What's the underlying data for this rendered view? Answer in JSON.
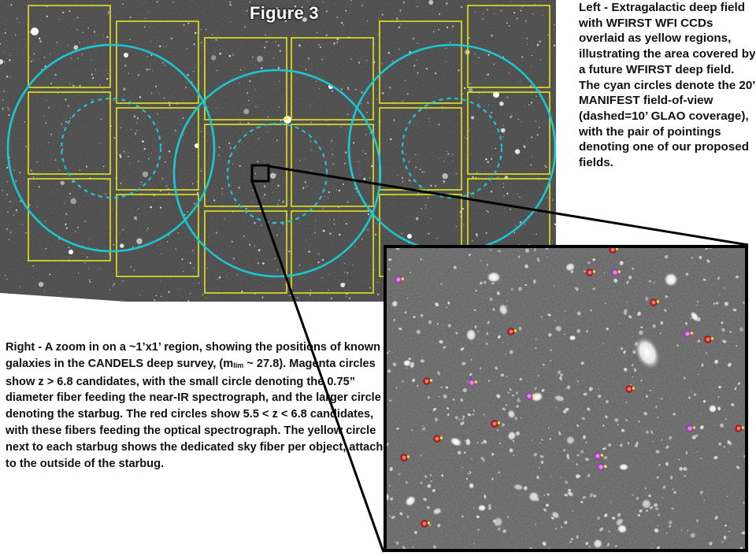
{
  "figure": {
    "title": "Figure 3"
  },
  "caption_left": "Left - Extragalactic deep field with WFIRST WFI CCDs overlaid as yellow regions, illustrating the area covered by a future WFIRST deep field.  The cyan circles denote the 20’ MANIFEST field-of-view (dashed=10’ GLAO coverage), with the pair of pointings denoting one of our proposed fields.",
  "caption_right": {
    "part1": "Right - A zoom in on a ~1’x1’ region, showing the positions of known galaxies in the CANDELS deep survey, (m",
    "sub": "lim",
    "part2": " ~ 27.8).  Magenta circles show z > 6.8 candidates, with the small circle denoting the 0.75” diameter fiber feeding the near-IR spectrograph, and the larger circle denoting the starbug.  The red circles show 5.5 < z < 6.8 candidates, with these fibers feeding the optical spectrograph. The yellow circle next to each starbug shows the dedicated sky fiber per object, attached to the outside of the starbug."
  },
  "colors": {
    "ccd": "#e6e619",
    "fov": "#19c8d2",
    "magenta": "#c850d2",
    "red": "#dc1e1e",
    "sky": "#f0e628"
  }
}
